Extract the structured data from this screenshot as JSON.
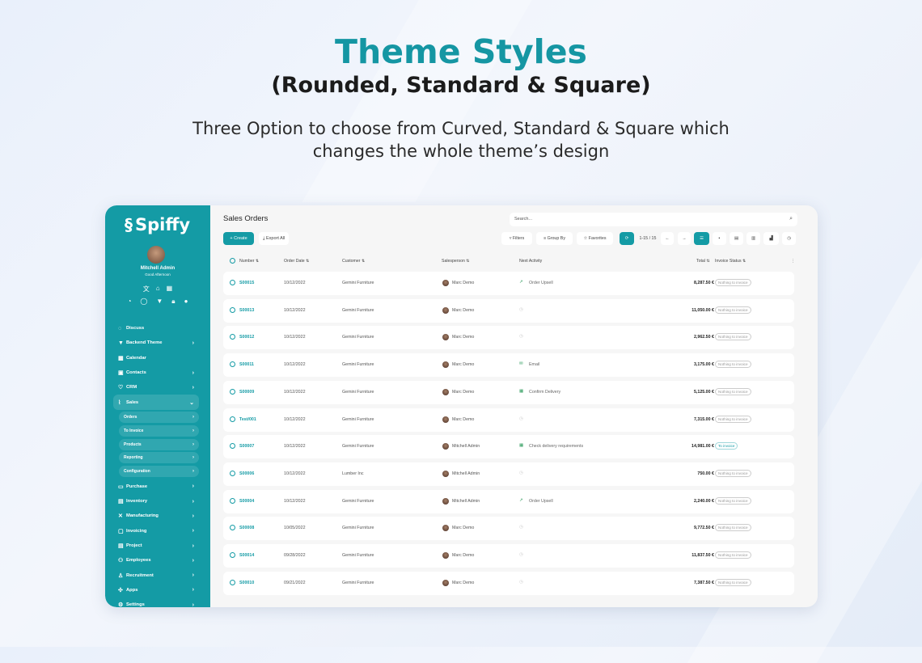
{
  "hero": {
    "title": "Theme Styles",
    "subtitle": "(Rounded, Standard & Square)",
    "description": "Three Option to choose from Curved, Standard & Square which changes the whole theme’s design"
  },
  "colors": {
    "accent": "#149ba5"
  },
  "sidebar": {
    "brand": "Spiffy",
    "user": "Mitchell Admin",
    "greeting": "Good Afternoon",
    "items": [
      {
        "label": "Discuss",
        "icon": "chat-icon"
      },
      {
        "label": "Backend Theme",
        "icon": "paint-icon",
        "chevron": true
      },
      {
        "label": "Calendar",
        "icon": "calendar-icon"
      },
      {
        "label": "Contacts",
        "icon": "contacts-icon",
        "chevron": true
      },
      {
        "label": "CRM",
        "icon": "handshake-icon",
        "chevron": true
      },
      {
        "label": "Sales",
        "icon": "chart-icon",
        "open": true
      }
    ],
    "sales_sub": [
      "Orders",
      "To Invoice",
      "Products",
      "Reporting",
      "Configuration"
    ],
    "items2": [
      {
        "label": "Purchase",
        "icon": "card-icon"
      },
      {
        "label": "Inventory",
        "icon": "box-icon"
      },
      {
        "label": "Manufacturing",
        "icon": "tools-icon"
      },
      {
        "label": "Invoicing",
        "icon": "invoice-icon"
      },
      {
        "label": "Project",
        "icon": "project-icon"
      },
      {
        "label": "Employees",
        "icon": "people-icon"
      },
      {
        "label": "Recruitment",
        "icon": "recruit-icon"
      },
      {
        "label": "Apps",
        "icon": "apps-icon"
      },
      {
        "label": "Settings",
        "icon": "gear-icon"
      }
    ]
  },
  "main": {
    "title": "Sales Orders",
    "search_placeholder": "Search...",
    "create": "+ Create",
    "export": "Export All",
    "filters": "Filters",
    "group_by": "Group By",
    "favorites": "Favorites",
    "pager": "1-15 / 15",
    "columns": {
      "number": "Number",
      "order_date": "Order Date",
      "customer": "Customer",
      "salesperson": "Salesperson",
      "next_activity": "Next Activity",
      "total": "Total",
      "invoice_status": "Invoice Status"
    },
    "rows": [
      {
        "number": "S00015",
        "date": "10/12/2022",
        "customer": "Gemini Furniture",
        "salesperson": "Marc Demo",
        "activity": "Order Upsell",
        "activity_icon": "trend-icon",
        "total": "8,287.50 €",
        "status": "Nothing to invoice"
      },
      {
        "number": "S00013",
        "date": "10/12/2022",
        "customer": "Gemini Furniture",
        "salesperson": "Marc Demo",
        "activity": "",
        "activity_icon": "clock-icon",
        "total": "11,050.00 €",
        "status": "Nothing to invoice"
      },
      {
        "number": "S00012",
        "date": "10/12/2022",
        "customer": "Gemini Furniture",
        "salesperson": "Marc Demo",
        "activity": "",
        "activity_icon": "clock-icon",
        "total": "2,962.50 €",
        "status": "Nothing to invoice"
      },
      {
        "number": "S00011",
        "date": "10/12/2022",
        "customer": "Gemini Furniture",
        "salesperson": "Marc Demo",
        "activity": "Email",
        "activity_icon": "email-icon",
        "total": "3,175.00 €",
        "status": "Nothing to invoice"
      },
      {
        "number": "S00009",
        "date": "10/12/2022",
        "customer": "Gemini Furniture",
        "salesperson": "Marc Demo",
        "activity": "Confirm Delivery",
        "activity_icon": "calendar-icon",
        "total": "5,125.00 €",
        "status": "Nothing to invoice"
      },
      {
        "number": "Test/001",
        "date": "10/12/2022",
        "customer": "Gemini Furniture",
        "salesperson": "Marc Demo",
        "activity": "",
        "activity_icon": "clock-icon",
        "total": "7,315.00 €",
        "status": "Nothing to invoice"
      },
      {
        "number": "S00007",
        "date": "10/12/2022",
        "customer": "Gemini Furniture",
        "salesperson": "Mitchell Admin",
        "activity": "Check delivery requirements",
        "activity_icon": "calendar-icon",
        "total": "14,981.00 €",
        "status": "To invoice"
      },
      {
        "number": "S00006",
        "date": "10/12/2022",
        "customer": "Lumber Inc",
        "salesperson": "Mitchell Admin",
        "activity": "",
        "activity_icon": "clock-icon",
        "total": "750.00 €",
        "status": "Nothing to invoice"
      },
      {
        "number": "S00004",
        "date": "10/12/2022",
        "customer": "Gemini Furniture",
        "salesperson": "Mitchell Admin",
        "activity": "Order Upsell",
        "activity_icon": "trend-icon",
        "total": "2,240.00 €",
        "status": "Nothing to invoice"
      },
      {
        "number": "S00008",
        "date": "10/05/2022",
        "customer": "Gemini Furniture",
        "salesperson": "Marc Demo",
        "activity": "",
        "activity_icon": "clock-icon",
        "total": "9,772.50 €",
        "status": "Nothing to invoice"
      },
      {
        "number": "S00014",
        "date": "09/28/2022",
        "customer": "Gemini Furniture",
        "salesperson": "Marc Demo",
        "activity": "",
        "activity_icon": "clock-icon",
        "total": "11,837.50 €",
        "status": "Nothing to invoice"
      },
      {
        "number": "S00010",
        "date": "09/21/2022",
        "customer": "Gemini Furniture",
        "salesperson": "Marc Demo",
        "activity": "",
        "activity_icon": "clock-icon",
        "total": "7,387.50 €",
        "status": "Nothing to invoice"
      }
    ]
  }
}
